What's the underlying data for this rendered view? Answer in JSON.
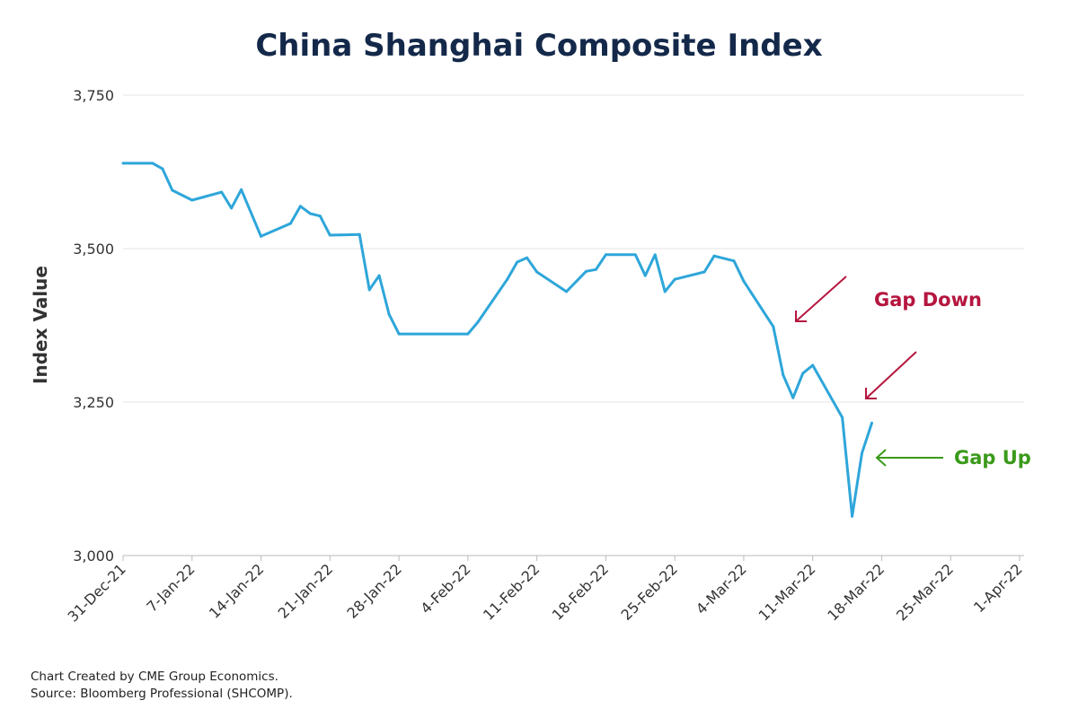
{
  "chart_data": {
    "type": "line",
    "title": "China Shanghai Composite Index",
    "xlabel": "",
    "ylabel": "Index Value",
    "ylim": [
      3000,
      3750
    ],
    "yticks": [
      3000,
      3250,
      3500,
      3750
    ],
    "ytick_labels": [
      "3,000",
      "3,250",
      "3,500",
      "3,750"
    ],
    "xlim": [
      "2021-12-31",
      "2022-04-01"
    ],
    "xtick_labels": [
      "31-Dec-21",
      "7-Jan-22",
      "14-Jan-22",
      "21-Jan-22",
      "28-Jan-22",
      "4-Feb-22",
      "11-Feb-22",
      "18-Feb-22",
      "25-Feb-22",
      "4-Mar-22",
      "11-Mar-22",
      "18-Mar-22",
      "25-Mar-22",
      "1-Apr-22"
    ],
    "grid": "horizontal",
    "line_color": "#2ea6da",
    "series": [
      {
        "x": [
          "2021-12-31",
          "2022-01-03",
          "2022-01-04",
          "2022-01-05",
          "2022-01-07",
          "2022-01-10",
          "2022-01-11",
          "2022-01-12",
          "2022-01-14",
          "2022-01-17",
          "2022-01-18",
          "2022-01-19",
          "2022-01-20",
          "2022-01-21",
          "2022-01-24",
          "2022-01-25",
          "2022-01-26",
          "2022-01-27",
          "2022-01-28",
          "2022-02-04",
          "2022-02-05",
          "2022-02-08",
          "2022-02-09",
          "2022-02-10",
          "2022-02-11",
          "2022-02-14",
          "2022-02-16",
          "2022-02-17",
          "2022-02-18",
          "2022-02-21",
          "2022-02-22",
          "2022-02-23",
          "2022-02-24",
          "2022-02-25",
          "2022-02-28",
          "2022-03-01",
          "2022-03-03",
          "2022-03-04",
          "2022-03-07",
          "2022-03-08",
          "2022-03-09",
          "2022-03-10",
          "2022-03-11",
          "2022-03-14",
          "2022-03-15",
          "2022-03-16",
          "2022-03-17"
        ],
        "y": [
          3639,
          3639,
          3630,
          3595,
          3579,
          3592,
          3566,
          3596,
          3520,
          3541,
          3569,
          3557,
          3553,
          3522,
          3523,
          3433,
          3456,
          3393,
          3361,
          3361,
          3380,
          3450,
          3478,
          3485,
          3462,
          3430,
          3463,
          3466,
          3490,
          3490,
          3456,
          3490,
          3430,
          3450,
          3462,
          3488,
          3480,
          3447,
          3373,
          3294,
          3257,
          3297,
          3310,
          3225,
          3064,
          3167,
          3216
        ]
      }
    ],
    "annotations": [
      {
        "text": "Gap Down",
        "color": "#b5163f"
      },
      {
        "text": "Gap Up",
        "color": "#3a9a1a"
      }
    ]
  },
  "footer": {
    "line1": "Chart Created by CME Group Economics.",
    "line2": "Source:  Bloomberg Professional (SHCOMP)."
  }
}
